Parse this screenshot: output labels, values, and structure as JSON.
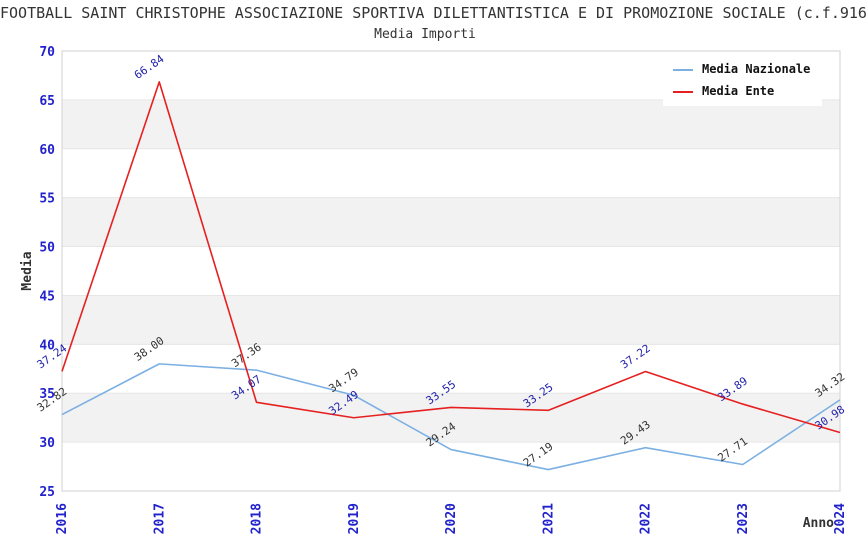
{
  "header": {
    "title": "FOOTBALL SAINT CHRISTOPHE ASSOCIAZIONE SPORTIVA DILETTANTISTICA E DI PROMOZIONE SOCIALE (c.f.916",
    "subtitle": "Media Importi"
  },
  "legend": {
    "items": [
      {
        "label": "Media Nazionale",
        "color": "#7cb0e2"
      },
      {
        "label": "Media Ente",
        "color": "#e62020"
      }
    ]
  },
  "colors": {
    "axis_tick": "#2222cc",
    "band": "#f2f2f2",
    "grid": "#e6e6e6",
    "border": "#d9d9d9",
    "text": "#333333"
  },
  "chart_data": {
    "type": "line",
    "title": "Media Importi",
    "x": [
      "2016",
      "2017",
      "2018",
      "2019",
      "2020",
      "2021",
      "2022",
      "2023",
      "2024"
    ],
    "series": [
      {
        "name": "Media Nazionale",
        "color": "#7cb0e2",
        "label_color": "#333333",
        "values": [
          32.82,
          38.0,
          37.36,
          34.79,
          29.24,
          27.19,
          29.43,
          27.71,
          34.32
        ]
      },
      {
        "name": "Media Ente",
        "color": "#e62020",
        "label_color": "#2222aa",
        "values": [
          37.24,
          66.84,
          34.07,
          32.49,
          33.55,
          33.25,
          37.22,
          33.89,
          30.98
        ]
      }
    ],
    "xlabel": "Anno",
    "ylabel": "Media",
    "ylim": [
      25,
      70
    ],
    "y_ticks": [
      70,
      65,
      60,
      55,
      50,
      45,
      40,
      35,
      30,
      25
    ],
    "grid": true,
    "alternating_bands": true,
    "point_labels": true,
    "legend_position": "top-right"
  }
}
